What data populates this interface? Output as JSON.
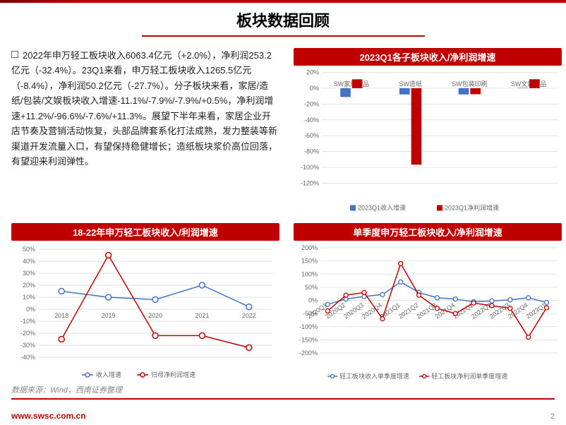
{
  "header": {
    "title": "板块数据回顾"
  },
  "text_block": "2022年申万轻工板块收入6063.4亿元（+2.0%），净利润253.2亿元（-32.4%）。23Q1来看，申万轻工板块收入1265.5亿元（-8.4%），净利润50.2亿元（-27.7%）。分子板块来看，家居/造纸/包装/文娱板块收入增速-11.1%/-7.9%/-7.9%/+0.5%，净利润增速+11.2%/-96.6%/-7.6%/+11.3%。展望下半年来看，家居企业开店节奏及营销活动恢复，头部品牌套系化打法成熟，发力整装等新渠道开发流量入口，有望保持稳健增长；造纸板块浆价高位回落，有望迎来利润弹性。",
  "chart_q1": {
    "type": "bar",
    "title": "2023Q1各子板块收入/净利润增速",
    "categories": [
      "SW家居用品",
      "SW造纸",
      "SW包装印刷",
      "SW文娱用品"
    ],
    "series": [
      {
        "name": "2023Q1收入增速",
        "color": "#4472c4",
        "values": [
          -11.1,
          -7.9,
          -7.9,
          0.5
        ]
      },
      {
        "name": "2023Q1净利润增速",
        "color": "#c00000",
        "values": [
          11.2,
          -96.6,
          -7.6,
          11.3
        ]
      }
    ],
    "ylim": [
      -120,
      20
    ],
    "ytick_step": 20,
    "label_fontsize": 9,
    "grid_color": "#d9d9d9",
    "bar_width": 0.35
  },
  "chart_1822": {
    "type": "line",
    "title": "18-22年申万轻工板块收入/利润增速",
    "categories": [
      "2018",
      "2019",
      "2020",
      "2021",
      "2022"
    ],
    "series": [
      {
        "name": "收入增速",
        "color": "#4472c4",
        "marker": "circle",
        "values": [
          15,
          10,
          8,
          20,
          2
        ]
      },
      {
        "name": "归母净利润增速",
        "color": "#c00000",
        "marker": "circle",
        "values": [
          -25,
          45,
          -22,
          -22,
          -32
        ]
      }
    ],
    "ylim": [
      -40,
      50
    ],
    "ytick_step": 10,
    "label_fontsize": 9,
    "grid_color": "#d9d9d9",
    "line_width": 1.5,
    "marker_size": 4
  },
  "chart_quarterly": {
    "type": "line",
    "title": "单季度申万轻工板块收入/净利润增速",
    "categories": [
      "2020Q1",
      "2020Q2",
      "2020Q3",
      "2020Q4",
      "2021Q1",
      "2021Q2",
      "2021Q3",
      "2021Q4",
      "2022Q1",
      "2022Q2",
      "2022Q3",
      "2022Q4",
      "2023Q1"
    ],
    "series": [
      {
        "name": "轻工板块收入单季度增速",
        "color": "#4472c4",
        "marker": "circle",
        "values": [
          -15,
          5,
          15,
          22,
          70,
          30,
          10,
          5,
          -5,
          -2,
          2,
          10,
          -8
        ]
      },
      {
        "name": "轻工板块净利润单季度增速",
        "color": "#c00000",
        "marker": "circle",
        "values": [
          -40,
          20,
          30,
          -70,
          140,
          20,
          -30,
          -50,
          -10,
          -20,
          -30,
          -140,
          -28
        ]
      }
    ],
    "ylim": [
      -200,
      200
    ],
    "ytick_step": 50,
    "label_fontsize": 8.5,
    "grid_color": "#d9d9d9",
    "line_width": 1.5,
    "marker_size": 3
  },
  "footer": {
    "source": "数据来源：Wind，西南证券整理",
    "url": "www.swsc.com.cn",
    "page": "2"
  }
}
